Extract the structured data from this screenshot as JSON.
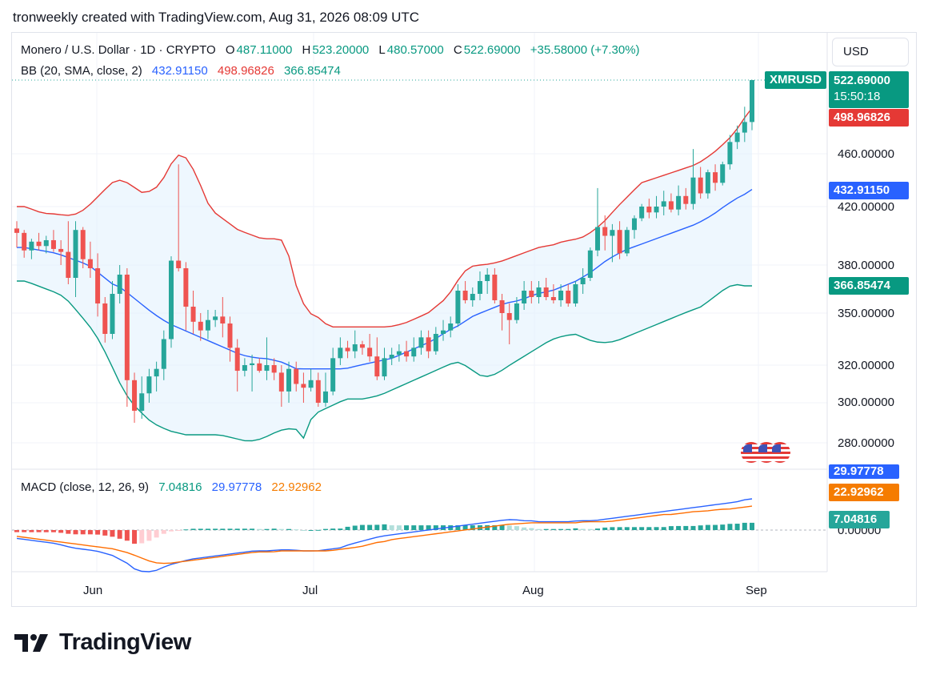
{
  "header": {
    "title": "tronweekly created with TradingView.com, Aug 31, 2026 08:09 UTC"
  },
  "legend": {
    "symbol": "Monero / U.S. Dollar · 1D · CRYPTO",
    "o_label": "O",
    "o": "487.11000",
    "h_label": "H",
    "h": "523.20000",
    "l_label": "L",
    "l": "480.57000",
    "c_label": "C",
    "c": "522.69000",
    "change": "+35.58000 (+7.30%)",
    "bb_label": "BB (20, SMA, close, 2)",
    "bb_basis": "432.91150",
    "bb_upper": "498.96826",
    "bb_lower": "366.85474",
    "macd_label": "MACD (close, 12, 26, 9)",
    "macd_hist": "7.04816",
    "macd_line": "29.97778",
    "macd_signal": "22.92962"
  },
  "currency_button": "USD",
  "price_tags": {
    "symbol": "XMRUSD",
    "price": "522.69000",
    "countdown": "15:50:18",
    "bb_upper": "498.96826",
    "bb_basis": "432.91150",
    "bb_lower": "366.85474",
    "macd_line": "29.97778",
    "macd_signal": "22.92962",
    "macd_hist": "7.04816"
  },
  "colors": {
    "up": "#26a69a",
    "down": "#ef5350",
    "bb_upper": "#e53935",
    "bb_basis": "#2962ff",
    "bb_lower": "#089981",
    "bb_fill": "#e3f2fd",
    "macd_line": "#2962ff",
    "macd_signal": "#ff6d00",
    "text": "#131722",
    "grid": "#f0f3fa"
  },
  "chart_data": {
    "type": "candlestick",
    "y_ticks": [
      "460.00000",
      "420.00000",
      "380.00000",
      "350.00000",
      "320.00000",
      "300.00000",
      "280.00000"
    ],
    "x_ticks": [
      "Jun",
      "Jul",
      "Aug",
      "Sep"
    ],
    "macd_ticks": [
      "0.00000"
    ],
    "ohlc": [
      [
        405,
        410,
        392,
        402
      ],
      [
        402,
        404,
        385,
        390
      ],
      [
        390,
        398,
        384,
        396
      ],
      [
        396,
        402,
        390,
        393
      ],
      [
        393,
        400,
        388,
        397
      ],
      [
        397,
        404,
        389,
        391
      ],
      [
        391,
        397,
        380,
        389
      ],
      [
        389,
        410,
        368,
        372
      ],
      [
        372,
        410,
        360,
        404
      ],
      [
        404,
        406,
        378,
        384
      ],
      [
        384,
        396,
        372,
        378
      ],
      [
        378,
        388,
        348,
        356
      ],
      [
        356,
        360,
        333,
        338
      ],
      [
        338,
        370,
        335,
        362
      ],
      [
        362,
        380,
        356,
        374
      ],
      [
        374,
        378,
        298,
        312
      ],
      [
        312,
        316,
        290,
        296
      ],
      [
        296,
        314,
        292,
        305
      ],
      [
        305,
        318,
        300,
        314
      ],
      [
        314,
        322,
        306,
        318
      ],
      [
        318,
        340,
        312,
        335
      ],
      [
        335,
        386,
        330,
        383
      ],
      [
        383,
        452,
        376,
        378
      ],
      [
        378,
        382,
        340,
        354
      ],
      [
        354,
        364,
        338,
        345
      ],
      [
        345,
        350,
        334,
        340
      ],
      [
        340,
        352,
        335,
        346
      ],
      [
        346,
        352,
        342,
        348
      ],
      [
        348,
        360,
        336,
        344
      ],
      [
        344,
        348,
        322,
        330
      ],
      [
        330,
        335,
        306,
        317
      ],
      [
        317,
        324,
        314,
        320
      ],
      [
        320,
        326,
        306,
        321
      ],
      [
        321,
        324,
        316,
        317
      ],
      [
        317,
        336,
        312,
        320
      ],
      [
        320,
        324,
        312,
        316
      ],
      [
        316,
        320,
        298,
        306
      ],
      [
        306,
        322,
        300,
        318
      ],
      [
        318,
        322,
        306,
        310
      ],
      [
        310,
        316,
        300,
        308
      ],
      [
        308,
        318,
        306,
        312
      ],
      [
        312,
        316,
        298,
        300
      ],
      [
        300,
        316,
        298,
        306
      ],
      [
        306,
        330,
        304,
        324
      ],
      [
        324,
        336,
        320,
        330
      ],
      [
        330,
        334,
        324,
        328
      ],
      [
        328,
        340,
        324,
        332
      ],
      [
        332,
        334,
        326,
        330
      ],
      [
        330,
        338,
        322,
        325
      ],
      [
        325,
        336,
        312,
        314
      ],
      [
        314,
        330,
        312,
        324
      ],
      [
        324,
        330,
        320,
        326
      ],
      [
        326,
        332,
        322,
        328
      ],
      [
        328,
        334,
        322,
        325
      ],
      [
        325,
        336,
        322,
        330
      ],
      [
        330,
        340,
        326,
        336
      ],
      [
        336,
        340,
        324,
        328
      ],
      [
        328,
        342,
        326,
        338
      ],
      [
        338,
        346,
        334,
        340
      ],
      [
        340,
        348,
        336,
        344
      ],
      [
        344,
        368,
        342,
        364
      ],
      [
        364,
        370,
        356,
        358
      ],
      [
        358,
        366,
        354,
        362
      ],
      [
        362,
        376,
        358,
        370
      ],
      [
        370,
        378,
        362,
        374
      ],
      [
        374,
        378,
        356,
        358
      ],
      [
        358,
        362,
        340,
        350
      ],
      [
        350,
        356,
        332,
        346
      ],
      [
        346,
        360,
        344,
        356
      ],
      [
        356,
        370,
        352,
        364
      ],
      [
        364,
        370,
        356,
        360
      ],
      [
        360,
        370,
        356,
        366
      ],
      [
        366,
        372,
        358,
        360
      ],
      [
        360,
        368,
        356,
        358
      ],
      [
        358,
        368,
        354,
        364
      ],
      [
        364,
        368,
        354,
        356
      ],
      [
        356,
        370,
        354,
        368
      ],
      [
        368,
        378,
        362,
        372
      ],
      [
        372,
        392,
        370,
        390
      ],
      [
        390,
        434,
        386,
        406
      ],
      [
        406,
        414,
        390,
        400
      ],
      [
        400,
        408,
        382,
        404
      ],
      [
        404,
        410,
        384,
        388
      ],
      [
        388,
        406,
        386,
        404
      ],
      [
        404,
        414,
        398,
        412
      ],
      [
        412,
        422,
        410,
        420
      ],
      [
        420,
        426,
        412,
        416
      ],
      [
        416,
        428,
        412,
        420
      ],
      [
        420,
        432,
        414,
        424
      ],
      [
        424,
        430,
        416,
        418
      ],
      [
        418,
        436,
        414,
        428
      ],
      [
        428,
        434,
        418,
        422
      ],
      [
        422,
        464,
        418,
        442
      ],
      [
        442,
        450,
        426,
        430
      ],
      [
        430,
        448,
        426,
        446
      ],
      [
        446,
        452,
        432,
        438
      ],
      [
        438,
        454,
        436,
        452
      ],
      [
        452,
        476,
        448,
        470
      ],
      [
        470,
        484,
        464,
        478
      ],
      [
        478,
        500,
        470,
        487
      ],
      [
        487,
        523,
        480,
        522.69
      ]
    ],
    "bb_upper": [
      420,
      420,
      418,
      416,
      415,
      415,
      414,
      414,
      416,
      420,
      426,
      432,
      438,
      440,
      438,
      434,
      430,
      432,
      436,
      446,
      458,
      460,
      452,
      440,
      424,
      416,
      412,
      408,
      404,
      402,
      400,
      398,
      398,
      398,
      396,
      372,
      358,
      350,
      348,
      344,
      342,
      342,
      342,
      342,
      342,
      342,
      342,
      342,
      343,
      344,
      346,
      348,
      350,
      354,
      358,
      364,
      372,
      378,
      380,
      380,
      381,
      382,
      384,
      386,
      388,
      390,
      392,
      393,
      394,
      396,
      397,
      398,
      400,
      404,
      408,
      414,
      420,
      426,
      432,
      438,
      440,
      442,
      444,
      446,
      448,
      450,
      452,
      456,
      460,
      466,
      472,
      480,
      490,
      499
    ],
    "bb_basis": [
      392,
      392,
      391,
      390,
      389,
      388,
      386,
      384,
      382,
      380,
      376,
      372,
      368,
      366,
      362,
      358,
      354,
      350,
      347,
      344,
      342,
      340,
      338,
      336,
      334,
      332,
      330,
      328,
      326,
      325,
      324,
      324,
      323,
      322,
      320,
      318,
      318,
      318,
      318,
      318,
      318,
      318,
      319,
      320,
      321,
      322,
      323,
      324,
      326,
      328,
      330,
      332,
      334,
      337,
      340,
      342,
      345,
      348,
      350,
      352,
      354,
      356,
      357,
      358,
      360,
      362,
      363,
      364,
      366,
      368,
      370,
      373,
      376,
      380,
      384,
      387,
      390,
      392,
      394,
      396,
      398,
      400,
      402,
      404,
      406,
      408,
      411,
      414,
      418,
      422,
      426,
      429,
      433
    ],
    "bb_lower": [
      370,
      370,
      368,
      366,
      364,
      362,
      358,
      352,
      346,
      340,
      332,
      322,
      312,
      304,
      298,
      294,
      290,
      288,
      286,
      285,
      284,
      284,
      284,
      284,
      284,
      283,
      282,
      281,
      281,
      282,
      284,
      286,
      287,
      287,
      282,
      294,
      296,
      298,
      300,
      302,
      302,
      302,
      303,
      304,
      306,
      308,
      310,
      312,
      314,
      316,
      318,
      320,
      322,
      320,
      317,
      314,
      314,
      316,
      319,
      322,
      325,
      328,
      331,
      334,
      336,
      337,
      338,
      336,
      334,
      333,
      333,
      334,
      336,
      338,
      340,
      342,
      344,
      346,
      348,
      350,
      352,
      354,
      358,
      362,
      366,
      368,
      367,
      367
    ],
    "macd_line": [
      -8,
      -9,
      -10,
      -11,
      -12,
      -13,
      -15,
      -17,
      -18,
      -19,
      -20,
      -22,
      -24,
      -28,
      -32,
      -38,
      -40,
      -40,
      -38,
      -34,
      -32,
      -30,
      -28,
      -27,
      -26,
      -25,
      -24,
      -23,
      -22,
      -21,
      -20,
      -20,
      -20,
      -19,
      -19,
      -19,
      -20,
      -20,
      -20,
      -19,
      -18,
      -17,
      -14,
      -12,
      -10,
      -8,
      -6,
      -5,
      -4,
      -3,
      -2,
      -1,
      0,
      1,
      2,
      3,
      4,
      5,
      6,
      7,
      8,
      9,
      10,
      10,
      9,
      9,
      8,
      8,
      8,
      8,
      8,
      9,
      9,
      9,
      10,
      11,
      12,
      13,
      14,
      15,
      16,
      17,
      18,
      19,
      20,
      21,
      22,
      23,
      24,
      25,
      26,
      27,
      29,
      30
    ],
    "macd_signal": [
      -6,
      -7,
      -8,
      -9,
      -10,
      -11,
      -12,
      -13,
      -14,
      -15,
      -16,
      -17,
      -18,
      -20,
      -22,
      -25,
      -28,
      -31,
      -32,
      -32,
      -31,
      -30,
      -29,
      -28,
      -27,
      -26,
      -25,
      -24,
      -23,
      -22,
      -21,
      -21,
      -21,
      -20,
      -20,
      -20,
      -20,
      -20,
      -20,
      -20,
      -19,
      -18,
      -17,
      -16,
      -14,
      -12,
      -11,
      -9,
      -8,
      -7,
      -6,
      -5,
      -4,
      -3,
      -2,
      -1,
      0,
      1,
      2,
      3,
      4,
      5,
      6,
      6,
      7,
      7,
      7,
      7,
      7,
      7,
      7,
      8,
      8,
      8,
      8,
      9,
      10,
      11,
      12,
      13,
      14,
      15,
      15,
      16,
      17,
      18,
      18,
      19,
      20,
      20,
      21,
      22,
      23
    ]
  }
}
